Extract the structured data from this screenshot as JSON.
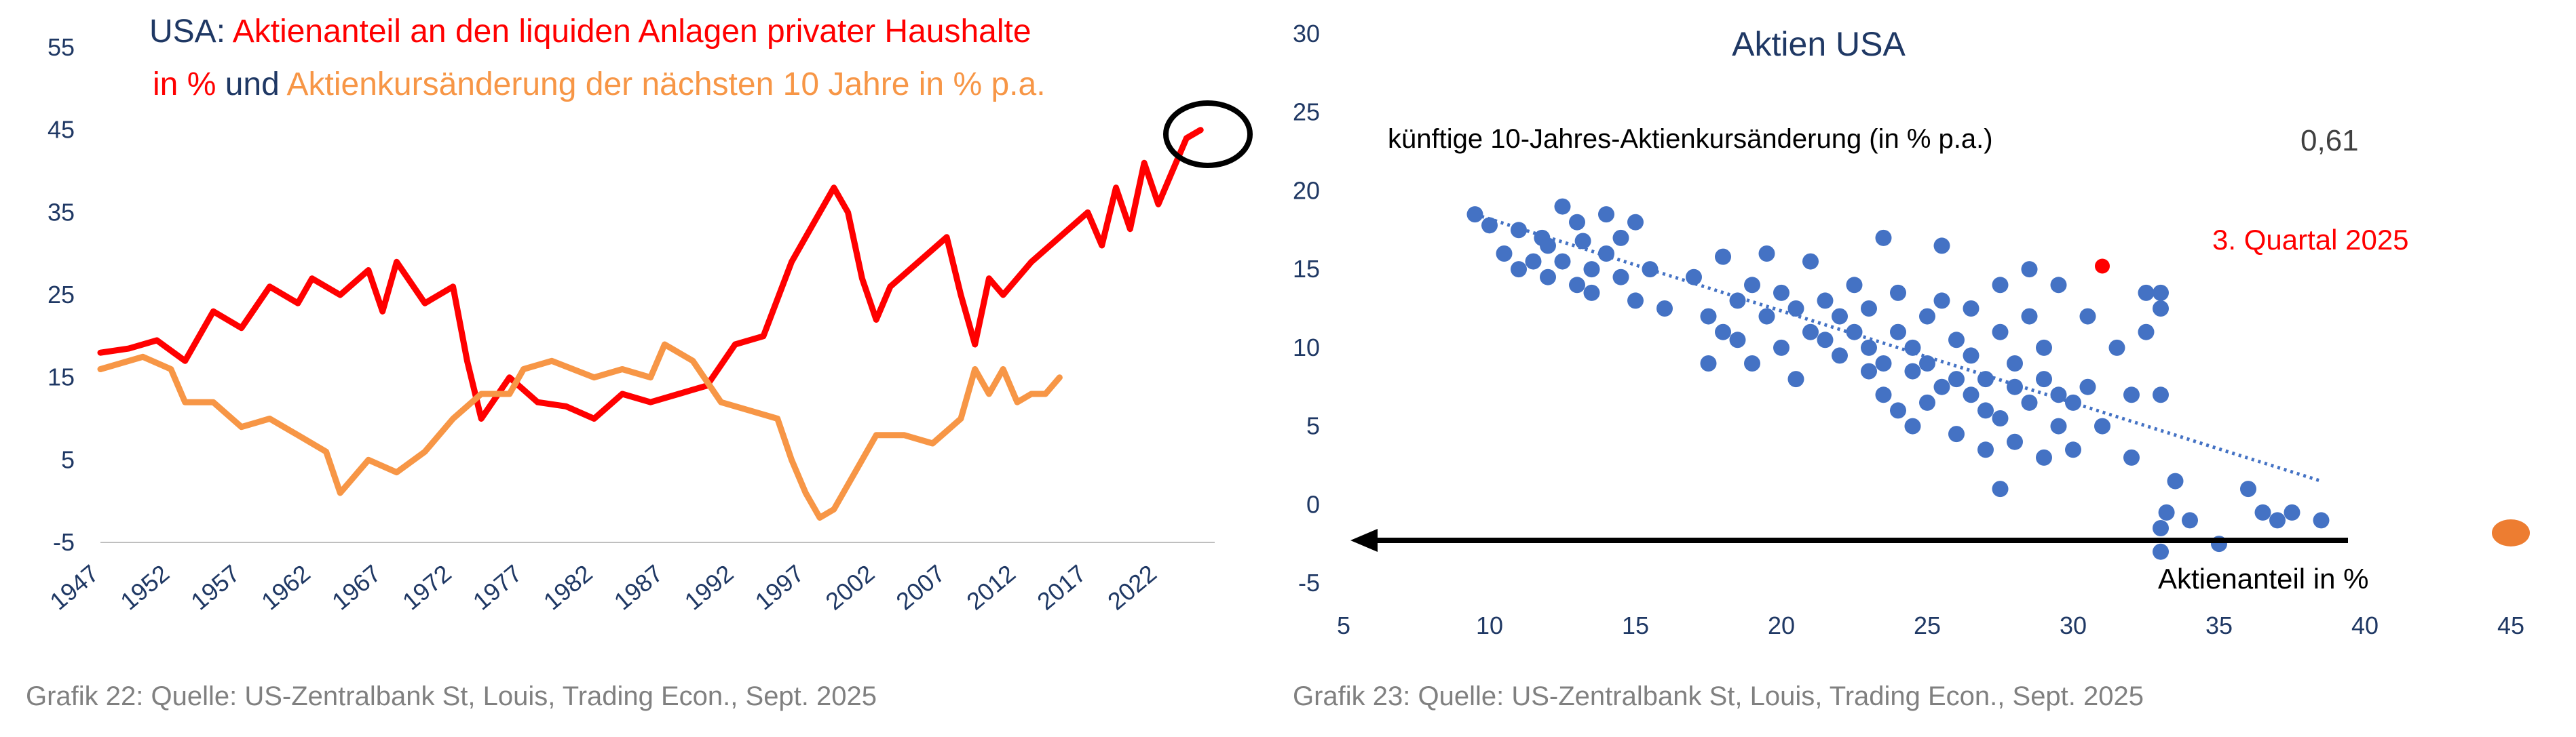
{
  "chart_data": [
    {
      "type": "line",
      "title_parts": {
        "prefix": "USA: ",
        "red_a": "Aktienanteil an den liquiden Anlagen privater Haushalte",
        "red_b": "in %",
        "mid": " und ",
        "orange": "Aktienkursänderung der nächsten 10 Jahre in % p.a."
      },
      "x_ticks": [
        "1947",
        "1952",
        "1957",
        "1962",
        "1967",
        "1972",
        "1977",
        "1982",
        "1987",
        "1992",
        "1997",
        "2002",
        "2007",
        "2012",
        "2017",
        "2022"
      ],
      "y_ticks": [
        "55",
        "45",
        "35",
        "25",
        "15",
        "5",
        "-5"
      ],
      "xlim": [
        1947,
        2026
      ],
      "ylim": [
        -5,
        55
      ],
      "grid": false,
      "series": [
        {
          "color": "#ff0000",
          "points": [
            [
              1947,
              18
            ],
            [
              1949,
              18.5
            ],
            [
              1951,
              19.5
            ],
            [
              1953,
              17
            ],
            [
              1955,
              23
            ],
            [
              1957,
              21
            ],
            [
              1959,
              26
            ],
            [
              1961,
              24
            ],
            [
              1962,
              27
            ],
            [
              1964,
              25
            ],
            [
              1966,
              28
            ],
            [
              1967,
              23
            ],
            [
              1968,
              29
            ],
            [
              1970,
              24
            ],
            [
              1972,
              26
            ],
            [
              1973,
              17
            ],
            [
              1974,
              10
            ],
            [
              1976,
              15
            ],
            [
              1978,
              12
            ],
            [
              1980,
              11.5
            ],
            [
              1982,
              10
            ],
            [
              1984,
              13
            ],
            [
              1986,
              12
            ],
            [
              1988,
              13
            ],
            [
              1990,
              14
            ],
            [
              1992,
              19
            ],
            [
              1994,
              20
            ],
            [
              1996,
              29
            ],
            [
              1997,
              32
            ],
            [
              1999,
              38
            ],
            [
              2000,
              35
            ],
            [
              2001,
              27
            ],
            [
              2002,
              22
            ],
            [
              2003,
              26
            ],
            [
              2005,
              29
            ],
            [
              2007,
              32
            ],
            [
              2008,
              25
            ],
            [
              2009,
              19
            ],
            [
              2010,
              27
            ],
            [
              2011,
              25
            ],
            [
              2013,
              29
            ],
            [
              2015,
              32
            ],
            [
              2017,
              35
            ],
            [
              2018,
              31
            ],
            [
              2019,
              38
            ],
            [
              2020,
              33
            ],
            [
              2021,
              41
            ],
            [
              2022,
              36
            ],
            [
              2023,
              40
            ],
            [
              2024,
              44
            ],
            [
              2025,
              45
            ]
          ]
        },
        {
          "color": "#f79646",
          "points": [
            [
              1947,
              16
            ],
            [
              1950,
              17.5
            ],
            [
              1952,
              16
            ],
            [
              1953,
              12
            ],
            [
              1955,
              12
            ],
            [
              1957,
              9
            ],
            [
              1959,
              10
            ],
            [
              1961,
              8
            ],
            [
              1963,
              6
            ],
            [
              1964,
              1
            ],
            [
              1966,
              5
            ],
            [
              1968,
              3.5
            ],
            [
              1970,
              6
            ],
            [
              1972,
              10
            ],
            [
              1974,
              13
            ],
            [
              1976,
              13
            ],
            [
              1977,
              16
            ],
            [
              1979,
              17
            ],
            [
              1982,
              15
            ],
            [
              1984,
              16
            ],
            [
              1986,
              15
            ],
            [
              1987,
              19
            ],
            [
              1989,
              17
            ],
            [
              1991,
              12
            ],
            [
              1993,
              11
            ],
            [
              1995,
              10
            ],
            [
              1996,
              5
            ],
            [
              1997,
              1
            ],
            [
              1998,
              -2
            ],
            [
              1999,
              -1
            ],
            [
              2000,
              2
            ],
            [
              2001,
              5
            ],
            [
              2002,
              8
            ],
            [
              2004,
              8
            ],
            [
              2006,
              7
            ],
            [
              2008,
              10
            ],
            [
              2009,
              16
            ],
            [
              2010,
              13
            ],
            [
              2011,
              16
            ],
            [
              2012,
              12
            ],
            [
              2013,
              13
            ],
            [
              2014,
              13
            ],
            [
              2015,
              15
            ]
          ]
        }
      ],
      "annotation": "circle around latest value"
    },
    {
      "type": "scatter",
      "title": "Aktien USA",
      "inner_label": "künftige 10-Jahres-Aktienkursänderung (in % p.a.)",
      "r_value": "0,61",
      "highlight_label": "3. Quartal 2025",
      "xlabel": "Aktienanteil in %",
      "x_ticks": [
        "5",
        "10",
        "15",
        "20",
        "25",
        "30",
        "35",
        "40",
        "45"
      ],
      "y_ticks": [
        "30",
        "25",
        "20",
        "15",
        "10",
        "5",
        "0",
        "-5"
      ],
      "xlim": [
        5,
        45
      ],
      "ylim": [
        -5,
        30
      ],
      "point_color": "#4472c4",
      "highlight_color": "#ff0000",
      "trendline": [
        [
          9.5,
          18.5
        ],
        [
          38.5,
          1.5
        ]
      ],
      "highlight_point": [
        31,
        15.2
      ],
      "extra_point": {
        "x": 45,
        "y": -1.8,
        "color": "#ed7d31"
      },
      "points": [
        [
          9.5,
          18.5
        ],
        [
          10,
          17.8
        ],
        [
          10.5,
          16
        ],
        [
          11,
          17.5
        ],
        [
          11,
          15
        ],
        [
          11.5,
          15.5
        ],
        [
          11.8,
          17
        ],
        [
          12,
          16.5
        ],
        [
          12,
          14.5
        ],
        [
          12.5,
          19
        ],
        [
          12.5,
          15.5
        ],
        [
          13,
          18
        ],
        [
          13,
          14
        ],
        [
          13.2,
          16.8
        ],
        [
          13.5,
          15
        ],
        [
          13.5,
          13.5
        ],
        [
          14,
          18.5
        ],
        [
          14,
          16
        ],
        [
          14.5,
          17
        ],
        [
          14.5,
          14.5
        ],
        [
          15,
          18
        ],
        [
          15,
          13
        ],
        [
          15.5,
          15
        ],
        [
          16,
          12.5
        ],
        [
          17,
          14.5
        ],
        [
          17.5,
          12
        ],
        [
          17.5,
          9
        ],
        [
          18,
          15.8
        ],
        [
          18,
          11
        ],
        [
          18.5,
          13
        ],
        [
          18.5,
          10.5
        ],
        [
          19,
          14
        ],
        [
          19,
          9
        ],
        [
          19.5,
          12
        ],
        [
          19.5,
          16
        ],
        [
          20,
          10
        ],
        [
          20,
          13.5
        ],
        [
          20.5,
          12.5
        ],
        [
          20.5,
          8
        ],
        [
          21,
          11
        ],
        [
          21,
          15.5
        ],
        [
          21.5,
          10.5
        ],
        [
          21.5,
          13
        ],
        [
          22,
          9.5
        ],
        [
          22,
          12
        ],
        [
          22.5,
          11
        ],
        [
          22.5,
          14
        ],
        [
          23,
          8.5
        ],
        [
          23,
          12.5
        ],
        [
          23,
          10
        ],
        [
          23.5,
          9
        ],
        [
          23.5,
          17
        ],
        [
          23.5,
          7
        ],
        [
          24,
          11
        ],
        [
          24,
          6
        ],
        [
          24,
          13.5
        ],
        [
          24.5,
          8.5
        ],
        [
          24.5,
          10
        ],
        [
          24.5,
          5
        ],
        [
          25,
          9
        ],
        [
          25,
          12
        ],
        [
          25,
          6.5
        ],
        [
          25.5,
          7.5
        ],
        [
          25.5,
          13
        ],
        [
          25.5,
          16.5
        ],
        [
          26,
          8
        ],
        [
          26,
          10.5
        ],
        [
          26,
          4.5
        ],
        [
          26.5,
          7
        ],
        [
          26.5,
          9.5
        ],
        [
          26.5,
          12.5
        ],
        [
          27,
          6
        ],
        [
          27,
          8
        ],
        [
          27,
          3.5
        ],
        [
          27.5,
          5.5
        ],
        [
          27.5,
          11
        ],
        [
          27.5,
          14
        ],
        [
          27.5,
          1
        ],
        [
          28,
          7.5
        ],
        [
          28,
          4
        ],
        [
          28,
          9
        ],
        [
          28.5,
          6.5
        ],
        [
          28.5,
          12
        ],
        [
          28.5,
          15
        ],
        [
          29,
          8
        ],
        [
          29,
          3
        ],
        [
          29,
          10
        ],
        [
          29.5,
          5
        ],
        [
          29.5,
          7
        ],
        [
          29.5,
          14
        ],
        [
          30,
          6.5
        ],
        [
          30,
          3.5
        ],
        [
          30.5,
          7.5
        ],
        [
          30.5,
          12
        ],
        [
          31,
          5
        ],
        [
          31.5,
          10
        ],
        [
          32,
          7
        ],
        [
          32,
          3
        ],
        [
          32.5,
          13.5
        ],
        [
          32.5,
          11
        ],
        [
          33,
          12.5
        ],
        [
          33,
          13.5
        ],
        [
          33,
          7
        ],
        [
          33,
          -1.5
        ],
        [
          33,
          -3
        ],
        [
          33.5,
          1.5
        ],
        [
          34,
          -1
        ],
        [
          35,
          -2.5
        ],
        [
          36.5,
          -0.5
        ],
        [
          37,
          -1
        ],
        [
          38.5,
          -1
        ],
        [
          37.5,
          -0.5
        ],
        [
          36,
          1
        ],
        [
          33.2,
          -0.5
        ]
      ]
    }
  ],
  "captions": {
    "left": "Grafik 22: Quelle: US-Zentralbank St, Louis, Trading Econ., Sept. 2025",
    "right": "Grafik 23: Quelle: US-Zentralbank St, Louis, Trading Econ., Sept. 2025"
  }
}
